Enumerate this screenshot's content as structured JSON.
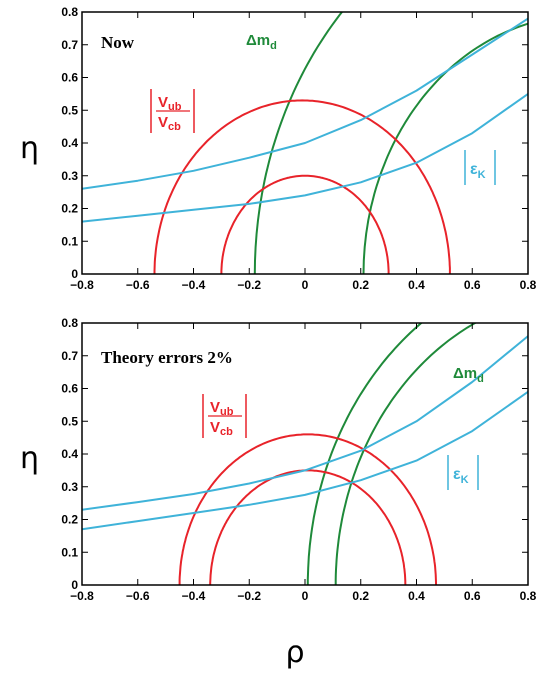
{
  "chart_data": [
    {
      "type": "line",
      "title": "Now",
      "xlabel": "",
      "ylabel": "η",
      "xlim": [
        -0.8,
        0.8
      ],
      "ylim": [
        0,
        0.8
      ],
      "xticks": [
        "−0.8",
        "−0.6",
        "−0.4",
        "−0.2",
        "0",
        "0.2",
        "0.4",
        "0.6",
        "0.8"
      ],
      "yticks": [
        "0",
        "0.1",
        "0.2",
        "0.3",
        "0.4",
        "0.5",
        "0.6",
        "0.7",
        "0.8"
      ],
      "colors": {
        "vub": "#e8232a",
        "dmd": "#1f8a3a",
        "epsk": "#3fb3d9"
      },
      "labels": {
        "vub_num": "V",
        "vub_num_sub": "ub",
        "vub_den": "V",
        "vub_den_sub": "cb",
        "dmd_prefix": "Δm",
        "dmd_sub": "d",
        "epsk_main": "ε",
        "epsk_sub": "K"
      },
      "vub_circles": [
        {
          "center": [
            0,
            0
          ],
          "radius": 0.3
        },
        {
          "center": [
            -0.01,
            0
          ],
          "radius": 0.53
        }
      ],
      "dmd_circles": [
        {
          "center": [
            1,
            0
          ],
          "radius": 1.18
        },
        {
          "center": [
            1,
            0
          ],
          "radius": 0.79
        }
      ],
      "epsk_curves": [
        {
          "x": [
            -0.8,
            -0.6,
            -0.4,
            -0.2,
            0,
            0.2,
            0.4,
            0.6,
            0.8
          ],
          "y": [
            0.16,
            0.178,
            0.196,
            0.214,
            0.24,
            0.28,
            0.34,
            0.43,
            0.55
          ]
        },
        {
          "x": [
            -0.8,
            -0.6,
            -0.4,
            -0.2,
            0,
            0.2,
            0.4,
            0.6,
            0.8
          ],
          "y": [
            0.26,
            0.285,
            0.315,
            0.355,
            0.4,
            0.47,
            0.56,
            0.67,
            0.78
          ]
        }
      ]
    },
    {
      "type": "line",
      "title": "Theory errors 2%",
      "xlabel": "ρ",
      "ylabel": "η",
      "xlim": [
        -0.8,
        0.8
      ],
      "ylim": [
        0,
        0.8
      ],
      "xticks": [
        "−0.8",
        "−0.6",
        "−0.4",
        "−0.2",
        "0",
        "0.2",
        "0.4",
        "0.6",
        "0.8"
      ],
      "yticks": [
        "0",
        "0.1",
        "0.2",
        "0.3",
        "0.4",
        "0.5",
        "0.6",
        "0.7",
        "0.8"
      ],
      "colors": {
        "vub": "#e8232a",
        "dmd": "#1f8a3a",
        "epsk": "#3fb3d9"
      },
      "labels": {
        "vub_num": "V",
        "vub_num_sub": "ub",
        "vub_den": "V",
        "vub_den_sub": "cb",
        "dmd_prefix": "Δm",
        "dmd_sub": "d",
        "epsk_main": "ε",
        "epsk_sub": "K"
      },
      "vub_circles": [
        {
          "center": [
            0.01,
            0
          ],
          "radius": 0.46
        },
        {
          "center": [
            0.01,
            0
          ],
          "radius": 0.35
        }
      ],
      "dmd_circles": [
        {
          "center": [
            1,
            0
          ],
          "radius": 0.99
        },
        {
          "center": [
            1,
            0
          ],
          "radius": 0.89
        }
      ],
      "epsk_curves": [
        {
          "x": [
            -0.8,
            -0.6,
            -0.4,
            -0.2,
            0,
            0.2,
            0.4,
            0.6,
            0.8
          ],
          "y": [
            0.17,
            0.195,
            0.22,
            0.245,
            0.275,
            0.32,
            0.38,
            0.47,
            0.59
          ]
        },
        {
          "x": [
            -0.8,
            -0.6,
            -0.4,
            -0.2,
            0,
            0.2,
            0.4,
            0.6,
            0.8
          ],
          "y": [
            0.23,
            0.253,
            0.278,
            0.31,
            0.35,
            0.41,
            0.5,
            0.62,
            0.76
          ]
        }
      ]
    }
  ]
}
